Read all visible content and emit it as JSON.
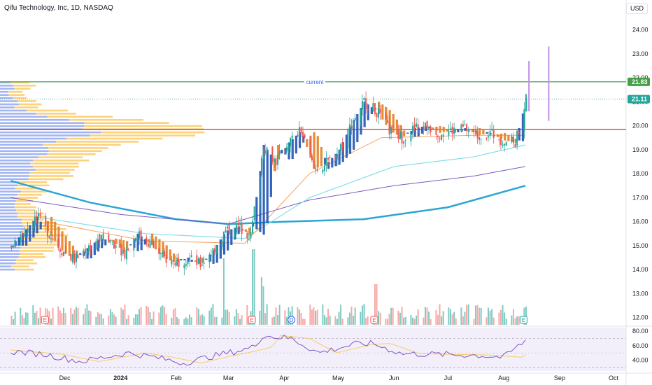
{
  "header": {
    "title": "Qifu Technology, Inc, 1D, NASDAQ",
    "currency": "USD"
  },
  "price_tags": [
    {
      "label": "21.83",
      "color": "#43a047"
    },
    {
      "label": "21.11",
      "color": "#26a69a"
    }
  ],
  "annotation": {
    "current_label": "current"
  },
  "event_markers": [
    {
      "letter": "E",
      "x_date": "2023-11-20"
    },
    {
      "letter": "E",
      "x_date": "2024-03-14"
    },
    {
      "letter": "D",
      "x_date": "2024-04-05"
    },
    {
      "letter": "E",
      "x_date": "2024-05-21"
    },
    {
      "letter": "E",
      "x_date": "2024-08-12"
    }
  ],
  "colors": {
    "up": "#26a69a",
    "down": "#ef5350",
    "vol_up": "#80cbc4",
    "vol_down": "#f7a9a7",
    "hline_green": "#43a047",
    "hline_red": "#d32f2f",
    "ma_long": "#29a5d6",
    "ma_purple": "#7e57c2",
    "ma_cyan": "#80deea",
    "ma_orange": "#f5a25d",
    "ribbon_blue": "#1e53b5",
    "ribbon_orange": "#e67e22",
    "vp_blue": "#90a8f0",
    "vp_yellow": "#fbc964",
    "rsi_line": "#7e57c2",
    "rsi_ma": "#f5c542",
    "projection": "#c490e4"
  },
  "chart_data": [
    {
      "type": "candlestick",
      "title": "Qifu Technology, Inc, 1D, NASDAQ",
      "y_axis_ticks": [
        "24.00",
        "23.00",
        "22.00",
        "21.00",
        "20.00",
        "19.00",
        "18.00",
        "17.00",
        "16.00",
        "15.00",
        "14.00",
        "13.00",
        "12.00"
      ],
      "x_axis_ticks": [
        "Dec",
        "2024",
        "Feb",
        "Mar",
        "Apr",
        "May",
        "Jun",
        "Jul",
        "Aug",
        "Sep",
        "Oct"
      ],
      "ylim": [
        11.7,
        24.6
      ],
      "horizontal_lines": [
        {
          "value": 21.83,
          "color": "green",
          "label": "current"
        },
        {
          "value": 19.85,
          "color": "red"
        },
        {
          "value": 21.11,
          "color": "teal",
          "style": "dotted"
        }
      ],
      "close_path": [
        {
          "date": "2023-11-01",
          "close": 15.0
        },
        {
          "date": "2023-11-08",
          "close": 15.6
        },
        {
          "date": "2023-11-15",
          "close": 16.2
        },
        {
          "date": "2023-11-22",
          "close": 15.5
        },
        {
          "date": "2023-11-29",
          "close": 14.8
        },
        {
          "date": "2023-12-06",
          "close": 14.4
        },
        {
          "date": "2023-12-13",
          "close": 14.9
        },
        {
          "date": "2023-12-20",
          "close": 15.3
        },
        {
          "date": "2023-12-27",
          "close": 15.2
        },
        {
          "date": "2024-01-03",
          "close": 14.7
        },
        {
          "date": "2024-01-10",
          "close": 15.5
        },
        {
          "date": "2024-01-17",
          "close": 15.1
        },
        {
          "date": "2024-01-24",
          "close": 14.5
        },
        {
          "date": "2024-01-31",
          "close": 14.3
        },
        {
          "date": "2024-02-07",
          "close": 14.5
        },
        {
          "date": "2024-02-14",
          "close": 14.2
        },
        {
          "date": "2024-02-21",
          "close": 14.8
        },
        {
          "date": "2024-02-28",
          "close": 15.6
        },
        {
          "date": "2024-03-06",
          "close": 15.8
        },
        {
          "date": "2024-03-13",
          "close": 15.4
        },
        {
          "date": "2024-03-20",
          "close": 19.2
        },
        {
          "date": "2024-03-27",
          "close": 18.5
        },
        {
          "date": "2024-04-03",
          "close": 19.3
        },
        {
          "date": "2024-04-10",
          "close": 19.8
        },
        {
          "date": "2024-04-17",
          "close": 18.2
        },
        {
          "date": "2024-04-24",
          "close": 18.4
        },
        {
          "date": "2024-05-01",
          "close": 19.0
        },
        {
          "date": "2024-05-08",
          "close": 20.1
        },
        {
          "date": "2024-05-15",
          "close": 21.0
        },
        {
          "date": "2024-05-22",
          "close": 20.6
        },
        {
          "date": "2024-05-29",
          "close": 19.8
        },
        {
          "date": "2024-06-05",
          "close": 19.5
        },
        {
          "date": "2024-06-12",
          "close": 19.9
        },
        {
          "date": "2024-06-19",
          "close": 20.0
        },
        {
          "date": "2024-06-26",
          "close": 19.7
        },
        {
          "date": "2024-07-03",
          "close": 19.8
        },
        {
          "date": "2024-07-10",
          "close": 19.9
        },
        {
          "date": "2024-07-17",
          "close": 19.6
        },
        {
          "date": "2024-07-24",
          "close": 19.7
        },
        {
          "date": "2024-07-31",
          "close": 19.4
        },
        {
          "date": "2024-08-07",
          "close": 19.3
        },
        {
          "date": "2024-08-13",
          "close": 21.11
        }
      ],
      "moving_averages": [
        {
          "color": "long-blue",
          "points": [
            [
              "2023-11-01",
              17.7
            ],
            [
              "2023-12-15",
              16.8
            ],
            [
              "2024-02-01",
              16.1
            ],
            [
              "2024-03-01",
              15.9
            ],
            [
              "2024-04-01",
              16.0
            ],
            [
              "2024-05-15",
              16.1
            ],
            [
              "2024-07-01",
              16.6
            ],
            [
              "2024-08-13",
              17.5
            ]
          ]
        },
        {
          "color": "purple",
          "points": [
            [
              "2023-11-01",
              17.0
            ],
            [
              "2024-01-01",
              16.3
            ],
            [
              "2024-03-01",
              15.9
            ],
            [
              "2024-04-15",
              16.9
            ],
            [
              "2024-06-01",
              17.5
            ],
            [
              "2024-07-15",
              17.9
            ],
            [
              "2024-08-13",
              18.3
            ]
          ]
        },
        {
          "color": "cyan",
          "points": [
            [
              "2023-11-15",
              16.2
            ],
            [
              "2024-01-15",
              15.5
            ],
            [
              "2024-03-10",
              15.3
            ],
            [
              "2024-04-15",
              17.0
            ],
            [
              "2024-06-01",
              18.3
            ],
            [
              "2024-07-15",
              18.7
            ],
            [
              "2024-08-13",
              19.2
            ]
          ]
        },
        {
          "color": "orange",
          "points": [
            [
              "2023-11-20",
              16.0
            ],
            [
              "2024-01-15",
              15.2
            ],
            [
              "2024-03-10",
              15.1
            ],
            [
              "2024-04-15",
              18.0
            ],
            [
              "2024-05-25",
              19.5
            ],
            [
              "2024-07-15",
              19.6
            ],
            [
              "2024-08-13",
              19.6
            ]
          ]
        }
      ],
      "projection_bars": [
        {
          "date": "2024-08-15",
          "low": 20.6,
          "high": 22.7
        },
        {
          "date": "2024-08-26",
          "low": 20.2,
          "high": 23.3
        }
      ]
    },
    {
      "type": "bar",
      "title": "",
      "series": [
        {
          "name": "",
          "values": []
        }
      ]
    },
    {
      "type": "line",
      "title": "",
      "y_axis_ticks": [
        "80.00",
        "60.00",
        "40.00"
      ],
      "ylim": [
        25,
        85
      ],
      "bands": [
        30,
        50,
        70
      ],
      "rsi_points": [
        [
          "2023-11-01",
          52
        ],
        [
          "2023-11-20",
          48
        ],
        [
          "2023-12-10",
          38
        ],
        [
          "2024-01-05",
          50
        ],
        [
          "2024-01-20",
          44
        ],
        [
          "2024-02-05",
          36
        ],
        [
          "2024-02-20",
          45
        ],
        [
          "2024-03-05",
          52
        ],
        [
          "2024-03-15",
          58
        ],
        [
          "2024-03-20",
          74
        ],
        [
          "2024-04-05",
          70
        ],
        [
          "2024-04-20",
          50
        ],
        [
          "2024-05-10",
          62
        ],
        [
          "2024-05-20",
          63
        ],
        [
          "2024-06-05",
          49
        ],
        [
          "2024-06-25",
          48
        ],
        [
          "2024-07-15",
          47
        ],
        [
          "2024-08-01",
          44
        ],
        [
          "2024-08-13",
          67
        ]
      ]
    }
  ]
}
